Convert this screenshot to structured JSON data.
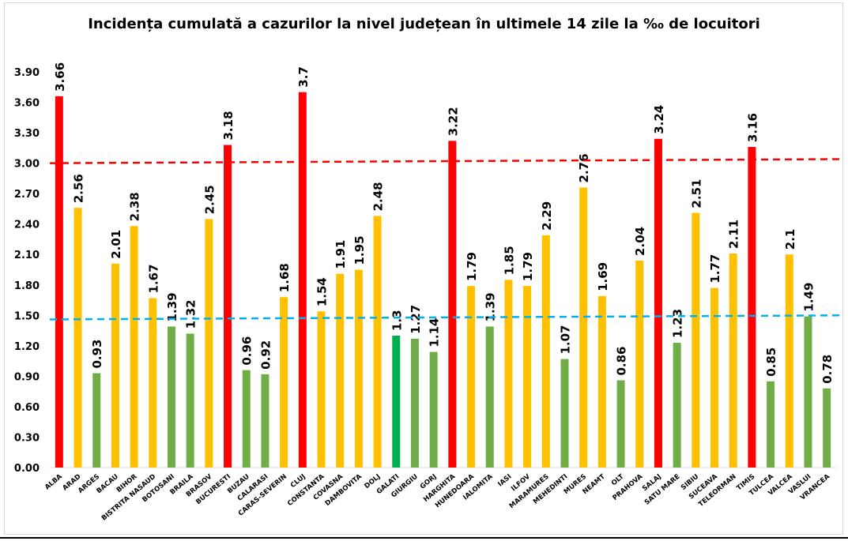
{
  "chart_data": {
    "type": "bar",
    "title": "Incidența cumulată a cazurilor la nivel județean în ultimele 14 zile la ‰ de locuitori",
    "xlabel": "",
    "ylabel": "",
    "ylim": [
      0,
      3.9
    ],
    "yticks": [
      "0.00",
      "0.30",
      "0.60",
      "0.90",
      "1.20",
      "1.50",
      "1.80",
      "2.10",
      "2.40",
      "2.70",
      "3.00",
      "3.30",
      "3.60",
      "3.90"
    ],
    "grid": false,
    "categories": [
      "ALBA",
      "ARAD",
      "ARGES",
      "BACAU",
      "BIHOR",
      "BISTRITA NASAUD",
      "BOTOSANI",
      "BRAILA",
      "BRASOV",
      "BUCURESTI",
      "BUZAU",
      "CALARASI",
      "CARAS-SEVERIN",
      "CLUJ",
      "CONSTANTA",
      "COVASNA",
      "DAMBOVITA",
      "DOLJ",
      "GALATI",
      "GIURGIU",
      "GORJ",
      "HARGHITA",
      "HUNEDOARA",
      "IALOMITA",
      "IASI",
      "ILFOV",
      "MARAMURES",
      "MEHEDINTI",
      "MURES",
      "NEAMT",
      "OLT",
      "PRAHOVA",
      "SALAJ",
      "SATU MARE",
      "SIBIU",
      "SUCEAVA",
      "TELEORMAN",
      "TIMIS",
      "TULCEA",
      "VALCEA",
      "VASLUI",
      "VRANCEA"
    ],
    "values": [
      3.66,
      2.56,
      0.93,
      2.01,
      2.38,
      1.67,
      1.39,
      1.32,
      2.45,
      3.18,
      0.96,
      0.92,
      1.68,
      3.7,
      1.54,
      1.91,
      1.95,
      2.48,
      1.3,
      1.27,
      1.14,
      3.22,
      1.79,
      1.39,
      1.85,
      1.79,
      2.29,
      1.07,
      2.76,
      1.69,
      0.86,
      2.04,
      3.24,
      1.23,
      2.51,
      1.77,
      2.11,
      3.16,
      0.85,
      2.1,
      1.49,
      0.78
    ],
    "labels": [
      "3.66",
      "2.56",
      "0.93",
      "2.01",
      "2.38",
      "1.67",
      "1.39",
      "1.32",
      "2.45",
      "3.18",
      "0.96",
      "0.92",
      "1.68",
      "3.7",
      "1.54",
      "1.91",
      "1.95",
      "2.48",
      "1.3",
      "1.27",
      "1.14",
      "3.22",
      "1.79",
      "1.39",
      "1.85",
      "1.79",
      "2.29",
      "1.07",
      "2.76",
      "1.69",
      "0.86",
      "2.04",
      "3.24",
      "1.23",
      "2.51",
      "1.77",
      "2.11",
      "3.16",
      "0.85",
      "2.1",
      "1.49",
      "0.78"
    ],
    "colors": {
      "high": "#ff0000",
      "medium": "#ffc000",
      "low": "#70ad47",
      "galati": "#00b050"
    },
    "thresholds": [
      {
        "start": 3.0,
        "end": 3.04,
        "color": "#ff0000",
        "style": "dashed"
      },
      {
        "start": 1.46,
        "end": 1.5,
        "color": "#00b0f0",
        "style": "dashed"
      }
    ]
  }
}
